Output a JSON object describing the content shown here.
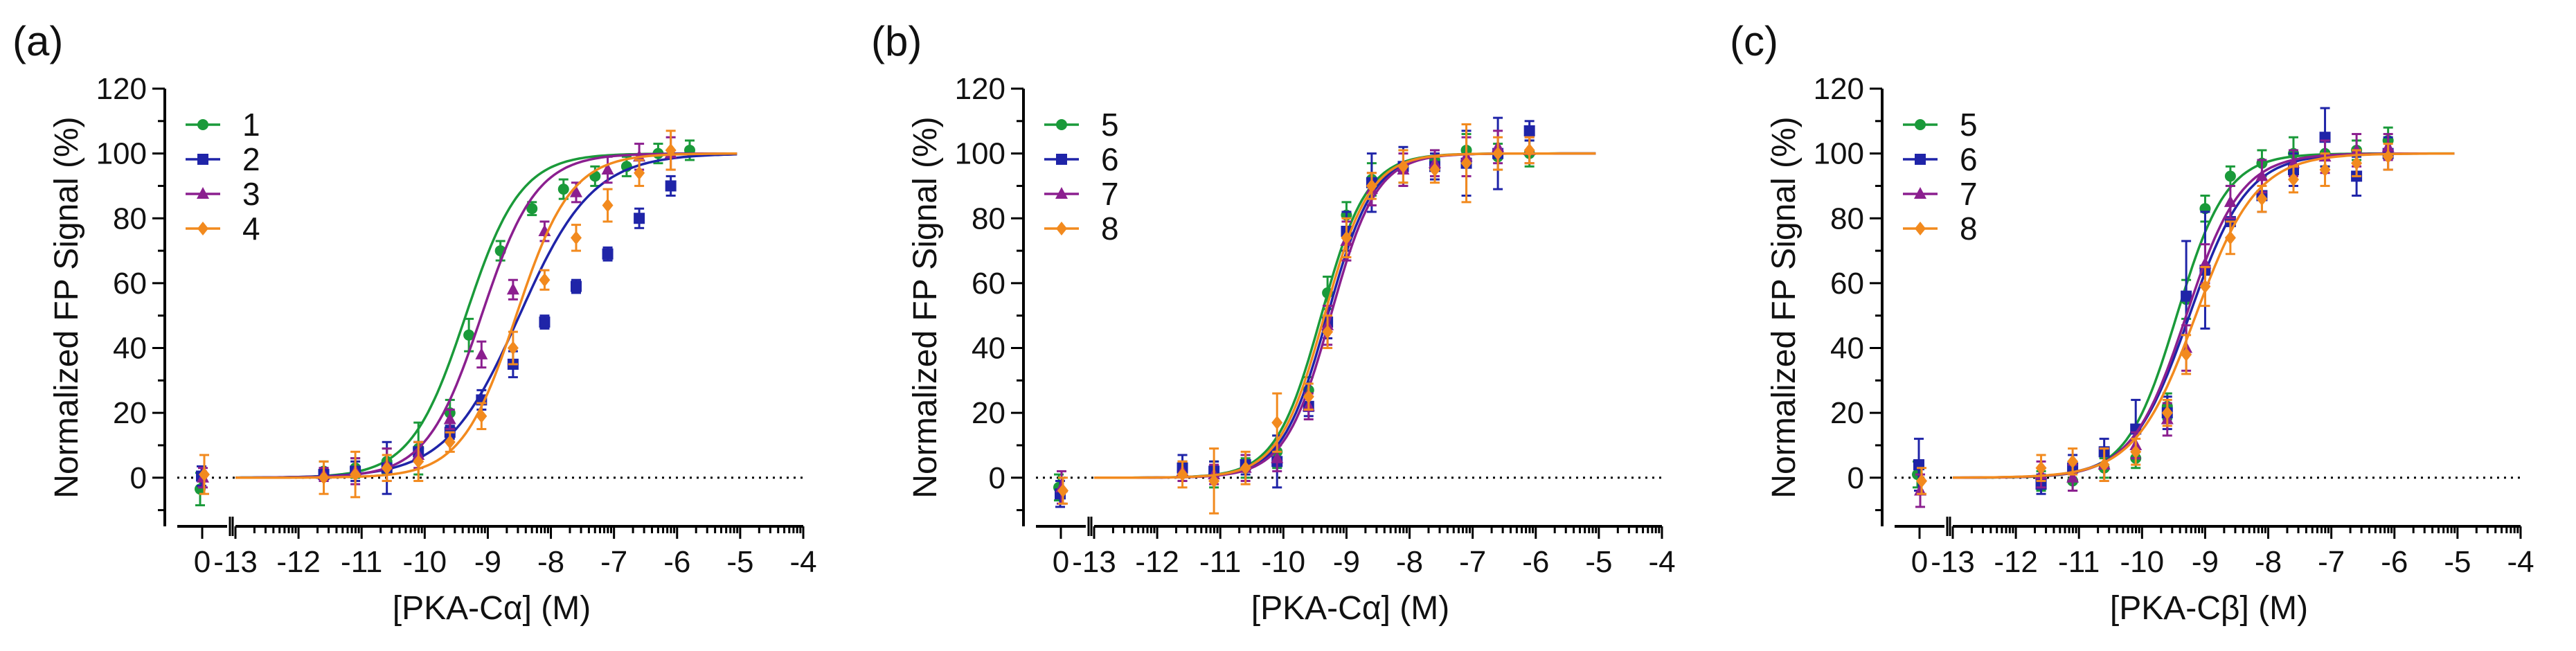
{
  "figure_title": "FP titration panels",
  "chart_data": [
    {
      "type": "scatter",
      "panel_label": "(a)",
      "title": "",
      "xlabel": "[PKA-Cα] (M)",
      "ylabel": "Normalized  FP Signal  (%)",
      "ylim": [
        -15,
        120
      ],
      "yticks": [
        "0",
        "20",
        "40",
        "60",
        "80",
        "100",
        "120"
      ],
      "xlim": [
        -13,
        -4
      ],
      "xticks": [
        "-13",
        "-12",
        "-11",
        "-10",
        "-9",
        "-8",
        "-7",
        "-6",
        "-5",
        "-4"
      ],
      "zero_axis_label": "0",
      "legend_position": "top-left",
      "series": [
        {
          "name": "1",
          "color": "#1a9a3a",
          "marker": "circle",
          "ec50_log": -9.35,
          "hill": 1.0,
          "zero_point": [
            -3.5,
            5
          ],
          "x": [
            -11.6,
            -11.1,
            -10.6,
            -10.1,
            -9.6,
            -9.3,
            -8.8,
            -8.3,
            -7.8,
            -7.3,
            -6.8,
            -6.3,
            -5.8
          ],
          "y": [
            2,
            3,
            5,
            9,
            20,
            44,
            70,
            83,
            89,
            93,
            96,
            100,
            101
          ],
          "err": [
            3,
            3,
            4,
            8,
            4,
            5,
            3,
            2,
            3,
            3,
            3,
            3,
            3
          ]
        },
        {
          "name": "2",
          "color": "#1f24a8",
          "marker": "square",
          "ec50_log": -8.5,
          "hill": 0.75,
          "zero_point": [
            0.5,
            3
          ],
          "x": [
            -11.6,
            -11.1,
            -10.6,
            -10.1,
            -9.6,
            -9.1,
            -8.6,
            -8.1,
            -7.6,
            -7.1,
            -6.6,
            -6.1
          ],
          "y": [
            1,
            2,
            3,
            8,
            14,
            24,
            35,
            48,
            59,
            69,
            80,
            90
          ],
          "err": [
            2,
            3,
            8,
            3,
            2,
            3,
            4,
            2,
            2,
            2,
            3,
            3
          ]
        },
        {
          "name": "3",
          "color": "#8b1f8f",
          "marker": "triangle",
          "ec50_log": -9.1,
          "hill": 1.0,
          "zero_point": [
            0.0,
            3
          ],
          "x": [
            -11.6,
            -11.1,
            -10.6,
            -10.1,
            -9.6,
            -9.1,
            -8.6,
            -8.1,
            -7.6,
            -7.1,
            -6.6,
            -6.1
          ],
          "y": [
            1,
            2,
            4,
            7,
            18,
            38,
            58,
            76,
            88,
            95,
            99,
            100
          ],
          "err": [
            2,
            4,
            5,
            4,
            3,
            4,
            3,
            3,
            3,
            4,
            4,
            5
          ]
        },
        {
          "name": "4",
          "color": "#f28a1e",
          "marker": "diamond",
          "ec50_log": -8.55,
          "hill": 1.0,
          "zero_point": [
            1.0,
            6
          ],
          "x": [
            -11.6,
            -11.1,
            -10.6,
            -10.1,
            -9.6,
            -9.1,
            -8.6,
            -8.1,
            -7.6,
            -7.1,
            -6.6,
            -6.1
          ],
          "y": [
            0,
            1,
            3,
            5,
            11,
            19,
            40,
            61,
            74,
            84,
            94,
            101
          ],
          "err": [
            5,
            7,
            4,
            6,
            3,
            4,
            5,
            3,
            4,
            5,
            4,
            6
          ]
        }
      ]
    },
    {
      "type": "scatter",
      "panel_label": "(b)",
      "title": "",
      "xlabel": "[PKA-Cα] (M)",
      "ylabel": "Normalized  FP Signal  (%)",
      "ylim": [
        -15,
        120
      ],
      "yticks": [
        "0",
        "20",
        "40",
        "60",
        "80",
        "100",
        "120"
      ],
      "xlim": [
        -13,
        -4
      ],
      "xticks": [
        "-13",
        "-12",
        "-11",
        "-10",
        "-9",
        "-8",
        "-7",
        "-6",
        "-5",
        "-4"
      ],
      "zero_axis_label": "0",
      "legend_position": "top-left",
      "series": [
        {
          "name": "5",
          "color": "#1a9a3a",
          "marker": "circle",
          "ec50_log": -9.4,
          "hill": 1.2,
          "zero_point": [
            -3,
            4
          ],
          "x": [
            -11.6,
            -11.1,
            -10.6,
            -10.1,
            -9.6,
            -9.3,
            -9.0,
            -8.6,
            -8.1,
            -7.6,
            -7.1,
            -6.6,
            -6.1
          ],
          "y": [
            2,
            1,
            3,
            8,
            27,
            57,
            81,
            92,
            96,
            98,
            101,
            99,
            100
          ],
          "err": [
            3,
            4,
            3,
            5,
            4,
            5,
            4,
            5,
            5,
            3,
            5,
            4,
            4
          ]
        },
        {
          "name": "6",
          "color": "#1f24a8",
          "marker": "square",
          "ec50_log": -9.3,
          "hill": 1.2,
          "zero_point": [
            -5,
            4
          ],
          "x": [
            -11.6,
            -11.1,
            -10.6,
            -10.1,
            -9.6,
            -9.3,
            -9.0,
            -8.6,
            -8.1,
            -7.6,
            -7.1,
            -6.6,
            -6.1
          ],
          "y": [
            3,
            2,
            4,
            5,
            22,
            48,
            76,
            91,
            96,
            96,
            97,
            100,
            107
          ],
          "err": [
            4,
            3,
            3,
            8,
            3,
            5,
            6,
            9,
            6,
            4,
            10,
            11,
            3
          ]
        },
        {
          "name": "7",
          "color": "#8b1f8f",
          "marker": "triangle",
          "ec50_log": -9.25,
          "hill": 1.2,
          "zero_point": [
            -3,
            5
          ],
          "x": [
            -11.6,
            -11.1,
            -10.6,
            -10.1,
            -9.6,
            -9.3,
            -9.0,
            -8.6,
            -8.1,
            -7.6,
            -7.1,
            -6.6,
            -6.1
          ],
          "y": [
            2,
            1,
            3,
            6,
            22,
            47,
            73,
            89,
            95,
            97,
            99,
            102,
            101
          ],
          "err": [
            3,
            3,
            4,
            4,
            4,
            6,
            6,
            5,
            5,
            4,
            6,
            5,
            4
          ]
        },
        {
          "name": "8",
          "color": "#f28a1e",
          "marker": "diamond",
          "ec50_log": -9.35,
          "hill": 1.2,
          "zero_point": [
            -4,
            4
          ],
          "x": [
            -11.6,
            -11.1,
            -10.6,
            -10.1,
            -9.6,
            -9.3,
            -9.0,
            -8.6,
            -8.1,
            -7.6,
            -7.1,
            -6.6,
            -6.1
          ],
          "y": [
            1,
            -1,
            3,
            17,
            25,
            45,
            74,
            90,
            96,
            95,
            97,
            100,
            101
          ],
          "err": [
            4,
            10,
            5,
            9,
            4,
            5,
            6,
            4,
            5,
            4,
            12,
            5,
            4
          ]
        }
      ]
    },
    {
      "type": "scatter",
      "panel_label": "(c)",
      "title": "",
      "xlabel": "[PKA-Cβ] (M)",
      "ylabel": "Normalized  FP Signal  (%)",
      "ylim": [
        -15,
        120
      ],
      "yticks": [
        "0",
        "20",
        "40",
        "60",
        "80",
        "100",
        "120"
      ],
      "xlim": [
        -13,
        -4
      ],
      "xticks": [
        "-13",
        "-12",
        "-11",
        "-10",
        "-9",
        "-8",
        "-7",
        "-6",
        "-5",
        "-4"
      ],
      "zero_axis_label": "0",
      "legend_position": "top-left",
      "series": [
        {
          "name": "5",
          "color": "#1a9a3a",
          "marker": "circle",
          "ec50_log": -9.45,
          "hill": 1.1,
          "zero_point": [
            1,
            4
          ],
          "x": [
            -11.6,
            -11.1,
            -10.6,
            -10.1,
            -9.6,
            -9.3,
            -9.0,
            -8.6,
            -8.1,
            -7.6,
            -7.1,
            -6.6,
            -6.1
          ],
          "y": [
            -1,
            -1,
            3,
            6,
            22,
            55,
            83,
            93,
            97,
            100,
            100,
            101,
            104
          ],
          "err": [
            3,
            3,
            3,
            3,
            4,
            6,
            4,
            3,
            4,
            5,
            4,
            3,
            4
          ]
        },
        {
          "name": "6",
          "color": "#1f24a8",
          "marker": "square",
          "ec50_log": -9.25,
          "hill": 0.95,
          "zero_point": [
            4,
            8
          ],
          "x": [
            -11.6,
            -11.1,
            -10.6,
            -10.1,
            -9.6,
            -9.3,
            -9.0,
            -8.6,
            -8.1,
            -7.6,
            -7.1,
            -6.6,
            -6.1
          ],
          "y": [
            -2,
            3,
            8,
            15,
            20,
            56,
            64,
            79,
            87,
            95,
            105,
            93,
            100
          ],
          "err": [
            3,
            4,
            4,
            9,
            5,
            17,
            18,
            5,
            5,
            5,
            9,
            6,
            5
          ]
        },
        {
          "name": "7",
          "color": "#8b1f8f",
          "marker": "triangle",
          "ec50_log": -9.3,
          "hill": 1.0,
          "zero_point": [
            -4,
            5
          ],
          "x": [
            -11.6,
            -11.1,
            -10.6,
            -10.1,
            -9.6,
            -9.3,
            -9.0,
            -8.6,
            -8.1,
            -7.6,
            -7.1,
            -6.6,
            -6.1
          ],
          "y": [
            1,
            0,
            4,
            10,
            18,
            40,
            66,
            85,
            93,
            97,
            99,
            101,
            102
          ],
          "err": [
            4,
            4,
            5,
            4,
            5,
            7,
            6,
            5,
            5,
            4,
            5,
            5,
            4
          ]
        },
        {
          "name": "8",
          "color": "#f28a1e",
          "marker": "diamond",
          "ec50_log": -9.15,
          "hill": 0.9,
          "zero_point": [
            -1,
            4
          ],
          "x": [
            -11.6,
            -11.1,
            -10.6,
            -10.1,
            -9.6,
            -9.3,
            -9.0,
            -8.6,
            -8.1,
            -7.6,
            -7.1,
            -6.6,
            -6.1
          ],
          "y": [
            3,
            5,
            4,
            8,
            20,
            38,
            59,
            74,
            86,
            92,
            95,
            97,
            99
          ],
          "err": [
            4,
            4,
            5,
            4,
            4,
            6,
            6,
            5,
            4,
            4,
            5,
            4,
            4
          ]
        }
      ]
    }
  ]
}
